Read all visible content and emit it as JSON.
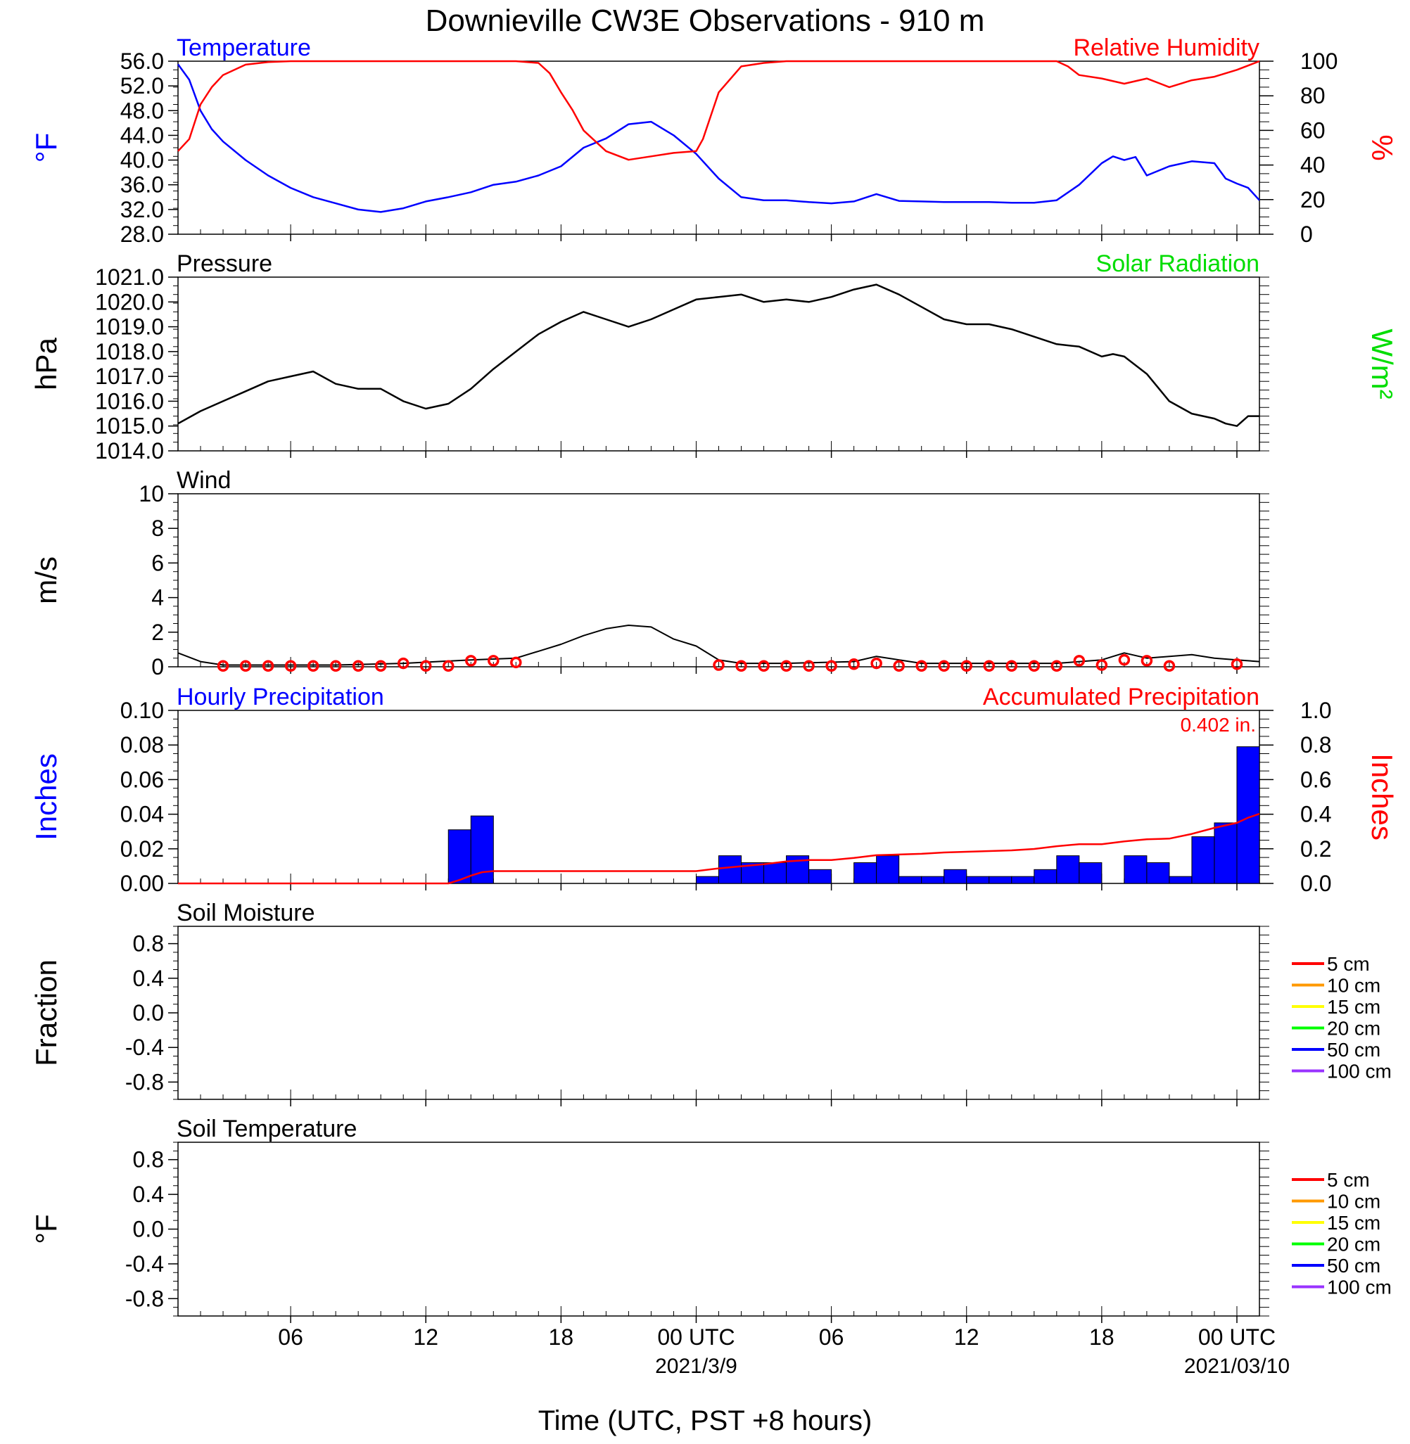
{
  "title": "Downieville CW3E Observations - 910 m",
  "x_axis": {
    "label": "Time (UTC, PST +8 hours)",
    "ticks": [
      {
        "hour": 6,
        "label": "06",
        "date": ""
      },
      {
        "hour": 12,
        "label": "12",
        "date": ""
      },
      {
        "hour": 18,
        "label": "18",
        "date": ""
      },
      {
        "hour": 24,
        "label": "00 UTC",
        "date": "2021/3/9"
      },
      {
        "hour": 30,
        "label": "06",
        "date": ""
      },
      {
        "hour": 36,
        "label": "12",
        "date": ""
      },
      {
        "hour": 42,
        "label": "18",
        "date": ""
      },
      {
        "hour": 48,
        "label": "00 UTC",
        "date": "2021/03/10"
      }
    ],
    "range_hours": [
      1,
      49
    ]
  },
  "colors": {
    "temperature": "#0000ff",
    "humidity": "#ff0000",
    "pressure": "#000000",
    "solar": "#00dd00",
    "wind": "#000000",
    "wind_marker": "#ff0000",
    "precip_bar": "#0000ff",
    "accum": "#ff0000"
  },
  "chart_data": [
    {
      "id": "temperature_humidity",
      "type": "line",
      "left_title": "Temperature",
      "right_title": "Relative Humidity",
      "ylabel": "°F",
      "ylabel_right": "%",
      "ylim": [
        28,
        56
      ],
      "ylim_right": [
        0,
        100
      ],
      "yticks": [
        "28.0",
        "32.0",
        "36.0",
        "40.0",
        "44.0",
        "48.0",
        "52.0",
        "56.0"
      ],
      "yticks_right": [
        "0",
        "20",
        "40",
        "60",
        "80",
        "100"
      ],
      "series": [
        {
          "name": "Temperature",
          "axis": "left",
          "x": [
            1,
            1.5,
            2,
            2.5,
            3,
            4,
            5,
            6,
            7,
            8,
            9,
            10,
            11,
            12,
            13,
            14,
            15,
            16,
            17,
            18,
            19,
            20,
            21,
            22,
            23,
            24,
            25,
            26,
            27,
            28,
            29,
            30,
            31,
            32,
            33,
            34,
            35,
            36,
            37,
            38,
            39,
            40,
            41,
            42,
            42.5,
            43,
            43.5,
            44,
            45,
            46,
            47,
            47.5,
            48,
            48.5,
            49
          ],
          "y": [
            55.5,
            53,
            48,
            45,
            43,
            40,
            37.5,
            35.5,
            34,
            33,
            32,
            31.6,
            32.2,
            33.3,
            34,
            34.8,
            36,
            36.5,
            37.5,
            39,
            42,
            43.5,
            45.8,
            46.2,
            44,
            41,
            37,
            34,
            33.5,
            33.5,
            33.2,
            33,
            33.3,
            34.5,
            33.4,
            33.3,
            33.2,
            33.2,
            33.2,
            33.1,
            33.1,
            33.5,
            36,
            39.5,
            40.6,
            40,
            40.5,
            37.5,
            39,
            39.8,
            39.5,
            37,
            36.2,
            35.5,
            33.5
          ]
        },
        {
          "name": "Relative Humidity",
          "axis": "right",
          "x": [
            1,
            1.5,
            2,
            2.5,
            3,
            4,
            5,
            6,
            8,
            10,
            12,
            14,
            16,
            17,
            17.5,
            18,
            18.5,
            19,
            19.5,
            20,
            21,
            22,
            23,
            24,
            24.3,
            25,
            26,
            27,
            28,
            30,
            32,
            34,
            36,
            38,
            40,
            40.5,
            41,
            42,
            43,
            44,
            45,
            46,
            47,
            48,
            49
          ],
          "y": [
            48,
            55,
            75,
            85,
            92,
            98,
            99.5,
            100,
            100,
            100,
            100,
            100,
            100,
            99,
            93,
            82,
            72,
            60,
            54,
            48,
            43,
            45,
            47,
            48,
            55,
            82,
            97,
            99,
            100,
            100,
            100,
            100,
            100,
            100,
            100,
            97,
            92,
            90,
            87,
            90,
            85,
            89,
            91,
            95,
            100
          ]
        }
      ]
    },
    {
      "id": "pressure_solar",
      "type": "line",
      "left_title": "Pressure",
      "right_title": "Solar Radiation",
      "ylabel": "hPa",
      "ylabel_right": "W/m²",
      "ylim": [
        1014,
        1021
      ],
      "yticks": [
        "1014.0",
        "1015.0",
        "1016.0",
        "1017.0",
        "1018.0",
        "1019.0",
        "1020.0",
        "1021.0"
      ],
      "series": [
        {
          "name": "Pressure",
          "axis": "left",
          "x": [
            1,
            2,
            3,
            4,
            5,
            6,
            7,
            8,
            9,
            10,
            11,
            12,
            13,
            14,
            15,
            16,
            17,
            18,
            19,
            20,
            21,
            22,
            23,
            24,
            25,
            26,
            27,
            28,
            29,
            30,
            31,
            32,
            33,
            34,
            35,
            36,
            37,
            38,
            39,
            40,
            41,
            42,
            42.5,
            43,
            44,
            45,
            46,
            47,
            47.5,
            48,
            48.5,
            49
          ],
          "y": [
            1015.1,
            1015.6,
            1016.0,
            1016.4,
            1016.8,
            1017.0,
            1017.2,
            1016.7,
            1016.5,
            1016.5,
            1016.0,
            1015.7,
            1015.9,
            1016.5,
            1017.3,
            1018.0,
            1018.7,
            1019.2,
            1019.6,
            1019.3,
            1019.0,
            1019.3,
            1019.7,
            1020.1,
            1020.2,
            1020.3,
            1020.0,
            1020.1,
            1020.0,
            1020.2,
            1020.5,
            1020.7,
            1020.3,
            1019.8,
            1019.3,
            1019.1,
            1019.1,
            1018.9,
            1018.6,
            1018.3,
            1018.2,
            1017.8,
            1017.9,
            1017.8,
            1017.1,
            1016.0,
            1015.5,
            1015.3,
            1015.1,
            1015.0,
            1015.4,
            1015.4
          ]
        }
      ]
    },
    {
      "id": "wind",
      "type": "line",
      "left_title": "Wind",
      "ylabel": "m/s",
      "ylim": [
        0,
        10
      ],
      "yticks": [
        "0",
        "2",
        "4",
        "6",
        "8",
        "10"
      ],
      "series": [
        {
          "name": "Wind speed",
          "axis": "left",
          "x": [
            1,
            2,
            3,
            5,
            8,
            11,
            14,
            16,
            17,
            18,
            19,
            20,
            21,
            22,
            23,
            24,
            25,
            26,
            28,
            31,
            32,
            34,
            37,
            40,
            42,
            43,
            44,
            46,
            47,
            48,
            49
          ],
          "y": [
            0.8,
            0.3,
            0.1,
            0.1,
            0.1,
            0.2,
            0.4,
            0.5,
            0.9,
            1.3,
            1.8,
            2.2,
            2.4,
            2.3,
            1.6,
            1.2,
            0.4,
            0.2,
            0.2,
            0.3,
            0.6,
            0.2,
            0.2,
            0.2,
            0.4,
            0.8,
            0.5,
            0.7,
            0.5,
            0.4,
            0.3
          ]
        },
        {
          "name": "Hourly wind markers",
          "axis": "left",
          "x": [
            3,
            4,
            5,
            6,
            7,
            8,
            9,
            10,
            11,
            12,
            13,
            14,
            15,
            16,
            25,
            26,
            27,
            28,
            29,
            30,
            31,
            32,
            33,
            34,
            35,
            36,
            37,
            38,
            39,
            40,
            41,
            42,
            43,
            44,
            45,
            48
          ],
          "y": [
            0.05,
            0.05,
            0.05,
            0.05,
            0.05,
            0.05,
            0.05,
            0.05,
            0.2,
            0.05,
            0.05,
            0.35,
            0.35,
            0.25,
            0.1,
            0.05,
            0.05,
            0.05,
            0.05,
            0.05,
            0.15,
            0.2,
            0.05,
            0.05,
            0.05,
            0.05,
            0.05,
            0.05,
            0.05,
            0.05,
            0.35,
            0.1,
            0.4,
            0.35,
            0.05,
            0.15
          ]
        }
      ]
    },
    {
      "id": "precipitation",
      "type": "bar",
      "left_title": "Hourly Precipitation",
      "right_title": "Accumulated Precipitation",
      "annotation": "0.402 in.",
      "ylabel": "Inches",
      "ylabel_right": "Inches",
      "ylim": [
        0,
        0.1
      ],
      "ylim_right": [
        0,
        1.0
      ],
      "yticks": [
        "0.00",
        "0.02",
        "0.04",
        "0.06",
        "0.08",
        "0.10"
      ],
      "yticks_right": [
        "0.0",
        "0.2",
        "0.4",
        "0.6",
        "0.8",
        "1.0"
      ],
      "bars": {
        "start_hour": [
          13,
          14,
          24,
          25,
          26,
          27,
          28,
          29,
          31,
          32,
          33,
          34,
          35,
          36,
          37,
          38,
          39,
          40,
          41,
          43,
          44,
          45,
          46,
          47,
          48
        ],
        "values": [
          0.031,
          0.039,
          0.004,
          0.016,
          0.012,
          0.012,
          0.016,
          0.008,
          0.012,
          0.016,
          0.004,
          0.004,
          0.008,
          0.004,
          0.004,
          0.004,
          0.008,
          0.016,
          0.012,
          0.016,
          0.012,
          0.004,
          0.027,
          0.035,
          0.079
        ]
      },
      "accumulated": {
        "x": [
          1,
          13,
          13.5,
          14,
          14.5,
          15,
          24,
          25,
          26,
          27,
          28,
          29,
          30,
          31,
          32,
          33,
          34,
          35,
          36,
          37,
          38,
          39,
          40,
          41,
          42,
          43,
          44,
          45,
          46,
          47,
          48,
          48.5,
          49
        ],
        "y": [
          0,
          0,
          0.02,
          0.045,
          0.065,
          0.071,
          0.071,
          0.087,
          0.099,
          0.111,
          0.127,
          0.135,
          0.135,
          0.147,
          0.163,
          0.167,
          0.171,
          0.179,
          0.183,
          0.187,
          0.191,
          0.199,
          0.215,
          0.227,
          0.227,
          0.243,
          0.255,
          0.259,
          0.286,
          0.321,
          0.35,
          0.38,
          0.402
        ]
      }
    },
    {
      "id": "soil_moisture",
      "type": "line",
      "left_title": "Soil Moisture",
      "ylabel": "Fraction",
      "ylim": [
        -1,
        1
      ],
      "yticks": [
        "-0.8",
        "-0.4",
        "0.0",
        "0.4",
        "0.8"
      ],
      "legend": [
        {
          "label": "5 cm",
          "color": "#ff0000"
        },
        {
          "label": "10 cm",
          "color": "#ff9900"
        },
        {
          "label": "15 cm",
          "color": "#ffff00"
        },
        {
          "label": "20 cm",
          "color": "#00ff00"
        },
        {
          "label": "50 cm",
          "color": "#0000ff"
        },
        {
          "label": "100 cm",
          "color": "#9933ff"
        }
      ]
    },
    {
      "id": "soil_temperature",
      "type": "line",
      "left_title": "Soil Temperature",
      "ylabel": "°F",
      "ylim": [
        -1,
        1
      ],
      "yticks": [
        "-0.8",
        "-0.4",
        "0.0",
        "0.4",
        "0.8"
      ],
      "legend": [
        {
          "label": "5 cm",
          "color": "#ff0000"
        },
        {
          "label": "10 cm",
          "color": "#ff9900"
        },
        {
          "label": "15 cm",
          "color": "#ffff00"
        },
        {
          "label": "20 cm",
          "color": "#00ff00"
        },
        {
          "label": "50 cm",
          "color": "#0000ff"
        },
        {
          "label": "100 cm",
          "color": "#9933ff"
        }
      ]
    }
  ]
}
